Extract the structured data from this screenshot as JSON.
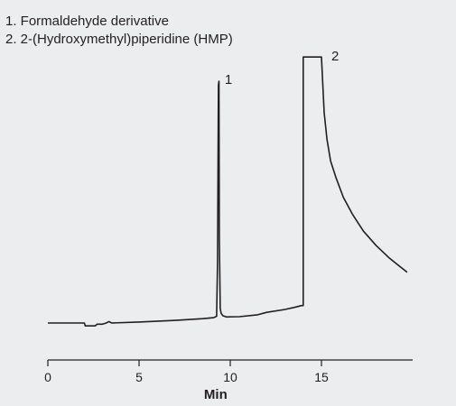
{
  "chart_data": {
    "type": "line",
    "title": "",
    "xlabel": "Min",
    "ylabel": "",
    "xlim": [
      0,
      20
    ],
    "xticks": [
      0,
      5,
      10,
      15
    ],
    "legend_placement": "top-left",
    "legend": [
      "1.  Formaldehyde derivative",
      "2.  2-(Hydroxymethyl)piperidine (HMP)"
    ],
    "peaks": [
      {
        "label": "1",
        "x": 9.35
      },
      {
        "label": "2",
        "x": 15.0
      }
    ],
    "series": [
      {
        "x": [
          0.0,
          2.0,
          2.05,
          2.6,
          2.7,
          3.0,
          3.2,
          3.35,
          3.5,
          5.0,
          7.0,
          8.5,
          9.1,
          9.25,
          9.3,
          9.35,
          9.38,
          9.4,
          9.45,
          9.5,
          9.6,
          9.8,
          10.5,
          11.5,
          12.0,
          13.0,
          13.6,
          13.9,
          14.0,
          14.0,
          14.9,
          15.0,
          15.15,
          15.3,
          15.5,
          15.8,
          16.2,
          16.7,
          17.3,
          18.0,
          18.7,
          19.2,
          19.7
        ],
        "y": [
          0.0,
          0.0,
          -0.012,
          -0.012,
          -0.005,
          -0.005,
          0.0,
          0.006,
          0.0,
          0.004,
          0.011,
          0.018,
          0.022,
          0.028,
          0.25,
          0.985,
          1.0,
          0.35,
          0.06,
          0.04,
          0.03,
          0.025,
          0.026,
          0.034,
          0.044,
          0.056,
          0.066,
          0.072,
          0.072,
          1.1,
          1.1,
          1.1,
          0.87,
          0.76,
          0.67,
          0.6,
          0.52,
          0.45,
          0.38,
          0.32,
          0.27,
          0.24,
          0.21
        ]
      }
    ],
    "line_color": "#231f20",
    "background": "#ecedee"
  }
}
